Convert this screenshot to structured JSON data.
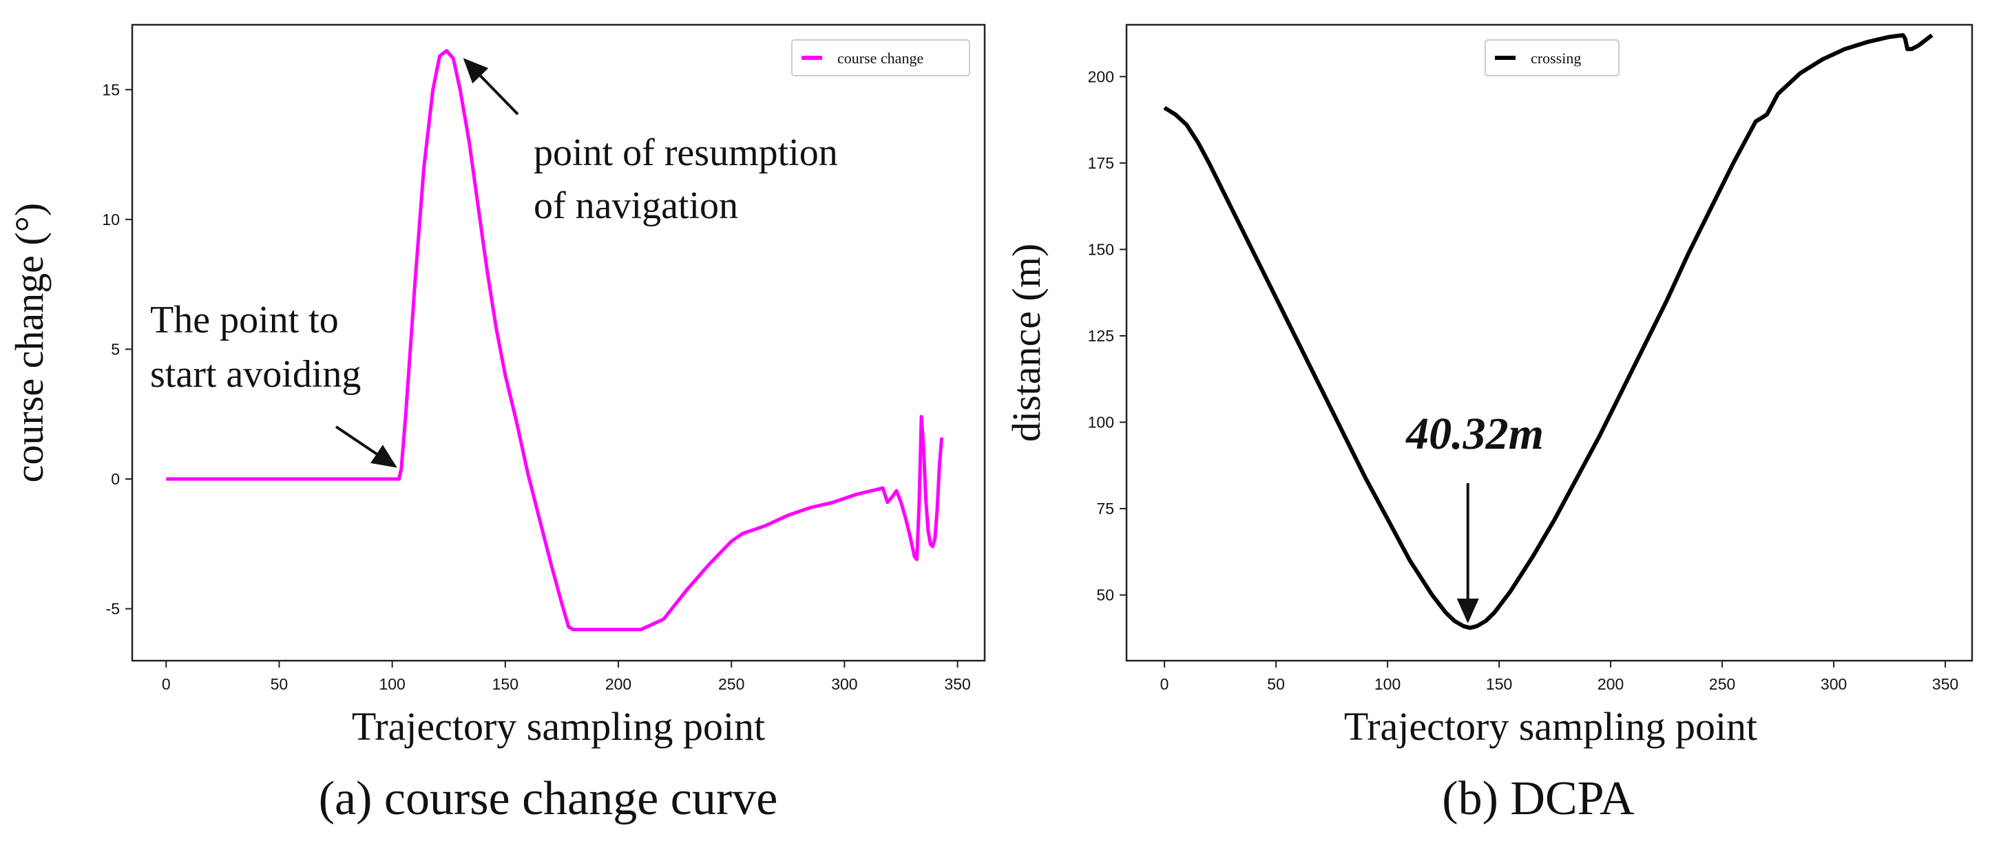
{
  "chart_data": [
    {
      "type": "line",
      "caption": "(a) course change curve",
      "xlabel": "Trajectory sampling point",
      "ylabel": "course change (°)",
      "xlim": [
        -15,
        362
      ],
      "ylim": [
        -7,
        17.5
      ],
      "xticks": [
        0,
        50,
        100,
        150,
        200,
        250,
        300,
        350
      ],
      "yticks": [
        -5,
        0,
        5,
        10,
        15
      ],
      "legend": {
        "label": "course change",
        "position": "top-right"
      },
      "annotations": [
        {
          "text_lines": [
            "The point to",
            "start avoiding"
          ],
          "target": [
            103,
            0.6
          ]
        },
        {
          "text_lines": [
            "point of resumption",
            "of navigation"
          ],
          "target": [
            131,
            16.3
          ]
        }
      ],
      "series": [
        {
          "name": "course change",
          "color": "#ff00ff",
          "points": [
            [
              0,
              0
            ],
            [
              103,
              0
            ],
            [
              104,
              0.4
            ],
            [
              106,
              2.5
            ],
            [
              110,
              7.5
            ],
            [
              114,
              12
            ],
            [
              118,
              15
            ],
            [
              121,
              16.3
            ],
            [
              124,
              16.5
            ],
            [
              127,
              16.2
            ],
            [
              130,
              15.0
            ],
            [
              134,
              13.0
            ],
            [
              138,
              10.5
            ],
            [
              142,
              8.0
            ],
            [
              146,
              5.8
            ],
            [
              150,
              4.0
            ],
            [
              155,
              2.2
            ],
            [
              160,
              0.2
            ],
            [
              165,
              -1.5
            ],
            [
              170,
              -3.2
            ],
            [
              175,
              -4.8
            ],
            [
              178,
              -5.7
            ],
            [
              180,
              -5.8
            ],
            [
              210,
              -5.8
            ],
            [
              215,
              -5.6
            ],
            [
              220,
              -5.4
            ],
            [
              230,
              -4.3
            ],
            [
              240,
              -3.3
            ],
            [
              250,
              -2.4
            ],
            [
              255,
              -2.1
            ],
            [
              265,
              -1.8
            ],
            [
              275,
              -1.4
            ],
            [
              285,
              -1.1
            ],
            [
              295,
              -0.9
            ],
            [
              305,
              -0.6
            ],
            [
              312,
              -0.45
            ],
            [
              317,
              -0.35
            ],
            [
              319,
              -0.9
            ],
            [
              321,
              -0.7
            ],
            [
              323,
              -0.45
            ],
            [
              325,
              -0.9
            ],
            [
              327,
              -1.5
            ],
            [
              329,
              -2.2
            ],
            [
              331,
              -3.0
            ],
            [
              332,
              -3.1
            ],
            [
              333,
              -1.0
            ],
            [
              334,
              2.4
            ],
            [
              335,
              1.2
            ],
            [
              336,
              -0.8
            ],
            [
              337,
              -2.0
            ],
            [
              338,
              -2.5
            ],
            [
              339,
              -2.6
            ],
            [
              340,
              -2.3
            ],
            [
              341,
              -1.2
            ],
            [
              342,
              0.5
            ],
            [
              343,
              1.6
            ]
          ]
        }
      ]
    },
    {
      "type": "line",
      "caption": "(b) DCPA",
      "xlabel": "Trajectory sampling point",
      "ylabel": "distance (m)",
      "xlim": [
        -17,
        362
      ],
      "ylim": [
        31,
        215
      ],
      "xticks": [
        0,
        50,
        100,
        150,
        200,
        250,
        300,
        350
      ],
      "yticks": [
        50,
        75,
        100,
        125,
        150,
        175,
        200
      ],
      "legend": {
        "label": "crossing",
        "position": "top-center"
      },
      "annotations": [
        {
          "text": "40.32m",
          "target": [
            136,
            43
          ]
        }
      ],
      "series": [
        {
          "name": "crossing",
          "color": "#000000",
          "points": [
            [
              0,
              191
            ],
            [
              5,
              189
            ],
            [
              10,
              186
            ],
            [
              15,
              181
            ],
            [
              20,
              175
            ],
            [
              30,
              162
            ],
            [
              40,
              149
            ],
            [
              50,
              136
            ],
            [
              60,
              123
            ],
            [
              70,
              110
            ],
            [
              80,
              97
            ],
            [
              90,
              84
            ],
            [
              100,
              72
            ],
            [
              110,
              60
            ],
            [
              120,
              50
            ],
            [
              126,
              45
            ],
            [
              130,
              42.5
            ],
            [
              134,
              41
            ],
            [
              137,
              40.5
            ],
            [
              140,
              41
            ],
            [
              144,
              42.5
            ],
            [
              148,
              45
            ],
            [
              155,
              51
            ],
            [
              165,
              61
            ],
            [
              175,
              72
            ],
            [
              185,
              84
            ],
            [
              195,
              96
            ],
            [
              205,
              109
            ],
            [
              215,
              122
            ],
            [
              225,
              135
            ],
            [
              235,
              149
            ],
            [
              245,
              162
            ],
            [
              255,
              175
            ],
            [
              265,
              187
            ],
            [
              270,
              189
            ],
            [
              275,
              195
            ],
            [
              285,
              201
            ],
            [
              295,
              205
            ],
            [
              305,
              208
            ],
            [
              315,
              210
            ],
            [
              325,
              211.5
            ],
            [
              331,
              212
            ],
            [
              332,
              211
            ],
            [
              333,
              208
            ],
            [
              335,
              208
            ],
            [
              338,
              209
            ],
            [
              342,
              211
            ],
            [
              344,
              212
            ]
          ]
        }
      ]
    }
  ]
}
